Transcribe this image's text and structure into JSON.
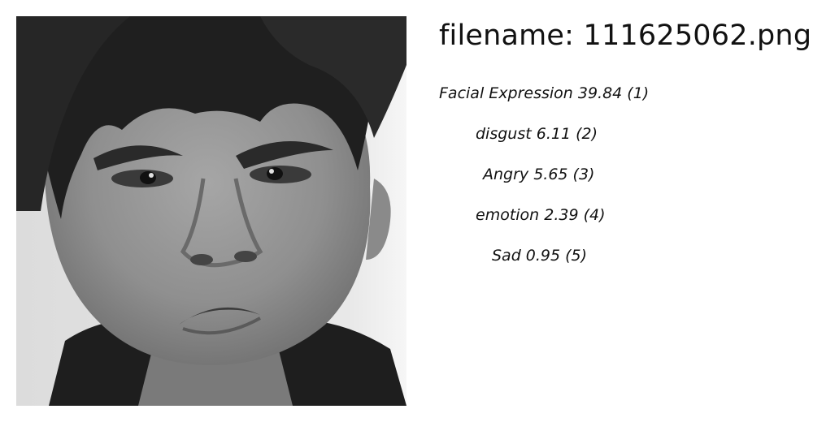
{
  "file": {
    "title": "filename: 111625062.png"
  },
  "image": {
    "subject": "grayscale close-up face photo"
  },
  "predictions": [
    {
      "text": "Facial Expression 39.84 (1)"
    },
    {
      "text": "disgust  6.11 (2)"
    },
    {
      "text": "Angry  5.65 (3)"
    },
    {
      "text": "emotion  2.39 (4)"
    },
    {
      "text": "Sad  0.95 (5)"
    }
  ]
}
